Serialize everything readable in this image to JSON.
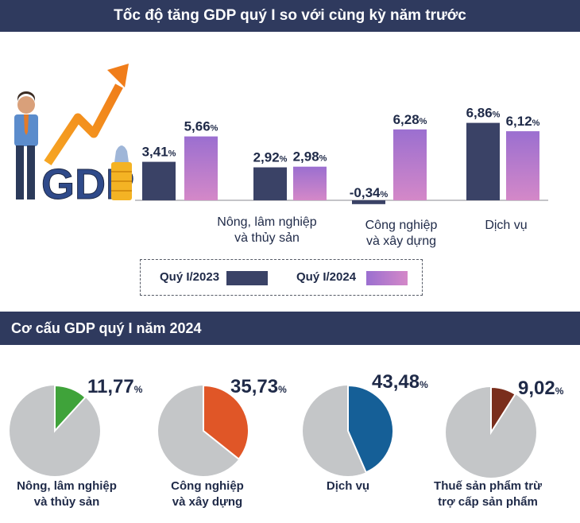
{
  "header": {
    "title": "Tốc độ tăng GDP quý I so với cùng kỳ năm trước"
  },
  "logo_text": "GDP",
  "legend": {
    "series1": "Quý I/2023",
    "series2": "Quý I/2024"
  },
  "section2": {
    "title": "Cơ cấu GDP quý I năm 2024"
  },
  "colors": {
    "header_bg": "#2f3a5e",
    "series1": "#3a4266",
    "series2_top": "#9b6fd0",
    "series2_bottom": "#d488c8",
    "pie_rest": "#c4c6c8",
    "pie_agri": "#3fa33a",
    "pie_ind": "#e05627",
    "pie_serv": "#155f97",
    "pie_tax": "#7a2e1c"
  },
  "chart_data": [
    {
      "type": "bar",
      "title": "Tốc độ tăng GDP quý I so với cùng kỳ năm trước",
      "categories": [
        "",
        "Nông, lâm nghiệp\nvà thủy sản",
        "Công nghiệp\nvà xây dựng",
        "Dịch vụ"
      ],
      "series": [
        {
          "name": "Quý I/2023",
          "values": [
            3.41,
            2.92,
            -0.34,
            6.86
          ],
          "labels": [
            "3,41",
            "2,92",
            "-0,34",
            "6,86"
          ]
        },
        {
          "name": "Quý I/2024",
          "values": [
            5.66,
            2.98,
            6.28,
            6.12
          ],
          "labels": [
            "5,66",
            "2,98",
            "6,28",
            "6,12"
          ]
        }
      ],
      "unit": "%",
      "legend": "bottom",
      "grid": false
    },
    {
      "type": "pie",
      "title": "Cơ cấu GDP quý I năm 2024",
      "slices": [
        {
          "label": "Nông, lâm nghiệp\nvà thủy sản",
          "value": 11.77,
          "value_label": "11,77"
        },
        {
          "label": "Công nghiệp\nvà xây dựng",
          "value": 35.73,
          "value_label": "35,73"
        },
        {
          "label": "Dịch vụ",
          "value": 43.48,
          "value_label": "43,48"
        },
        {
          "label": "Thuế sản phẩm trừ\ntrợ cấp sản phẩm",
          "value": 9.02,
          "value_label": "9,02"
        }
      ],
      "unit": "%"
    }
  ]
}
